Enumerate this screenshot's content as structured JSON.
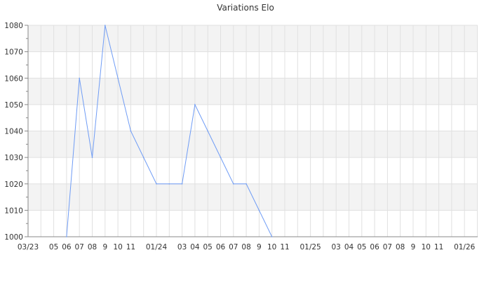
{
  "chart_data": {
    "type": "line",
    "title": "Variations Elo",
    "xlabel": "",
    "ylabel": "",
    "ylim": [
      1000,
      1080
    ],
    "yticks": [
      1000,
      1010,
      1020,
      1030,
      1040,
      1050,
      1060,
      1070,
      1080
    ],
    "grid": true,
    "line_color": "#6f9cf5",
    "x_months": [
      "03/23",
      "04/23",
      "05/23",
      "06/23",
      "07/23",
      "08/23",
      "09/23",
      "10/23",
      "11/23",
      "12/23",
      "01/24",
      "02/24",
      "03/24",
      "04/24",
      "05/24",
      "06/24",
      "07/24",
      "08/24",
      "09/24",
      "10/24",
      "11/24",
      "12/24",
      "01/25",
      "02/25",
      "03/25",
      "04/25",
      "05/25",
      "06/25",
      "07/25",
      "08/25",
      "09/25",
      "10/25",
      "11/25",
      "12/25",
      "01/26",
      "02/26"
    ],
    "xtick_labels": [
      "03/23",
      "",
      "05",
      "06",
      "07",
      "08",
      "9",
      "10",
      "11",
      "",
      "01/24",
      "",
      "03",
      "04",
      "05",
      "06",
      "07",
      "08",
      "9",
      "10",
      "11",
      "",
      "01/25",
      "",
      "03",
      "04",
      "05",
      "06",
      "07",
      "08",
      "9",
      "10",
      "11",
      "",
      "01/26",
      ""
    ],
    "series": [
      {
        "x": [
          "06/23",
          "07/23",
          "08/23",
          "09/23",
          "10/23",
          "11/23",
          "12/23",
          "01/24",
          "02/24",
          "03/24",
          "04/24",
          "05/24",
          "06/24",
          "07/24",
          "08/24",
          "09/24",
          "10/24"
        ],
        "values": [
          1000,
          1060,
          1030,
          1080,
          1060,
          1040,
          1030,
          1020,
          1020,
          1020,
          1050,
          1040,
          1030,
          1020,
          1020,
          1010,
          1000
        ]
      }
    ]
  }
}
